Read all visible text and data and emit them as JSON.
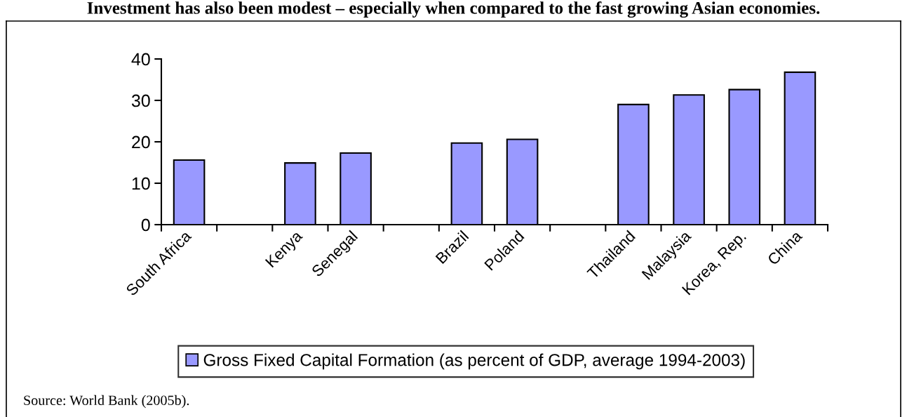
{
  "chart_data": {
    "type": "bar",
    "title": "Investment has also been modest – especially when compared to the fast growing Asian economies.",
    "categories": [
      "South Africa",
      null,
      "Kenya",
      "Senegal",
      null,
      "Brazil",
      "Poland",
      null,
      "Thailand",
      "Malaysia",
      "Korea, Rep.",
      "China"
    ],
    "series": [
      {
        "name": "Gross Fixed Capital Formation (as percent of GDP, average 1994-2003)",
        "color": "#9999ff",
        "values": [
          15.6,
          null,
          14.9,
          17.3,
          null,
          19.7,
          20.6,
          null,
          29.0,
          31.3,
          32.6,
          36.8
        ]
      }
    ],
    "ylim": [
      0,
      40
    ],
    "yticks": [
      0,
      10,
      20,
      30,
      40
    ],
    "grid": false,
    "legend": "bottom",
    "annotations": [
      "Source: World Bank (2005b)."
    ]
  }
}
